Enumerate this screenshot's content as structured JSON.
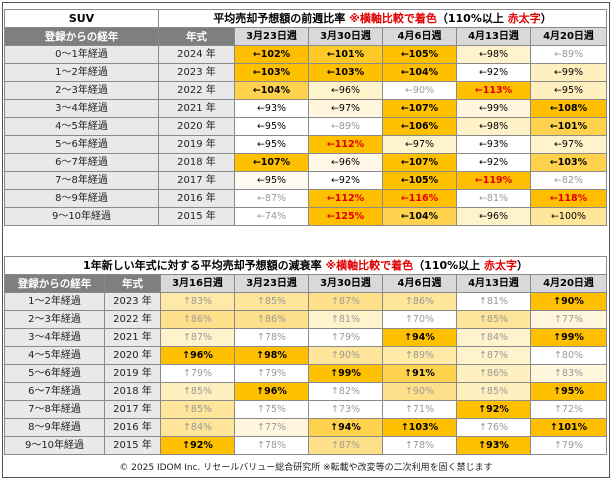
{
  "chart_data": [
    {
      "type": "table",
      "title_left": "SUV",
      "title_main": "平均売却予想額の前週比率",
      "title_note": "※横軸比較で着色",
      "title_paren_open": "（110%以上",
      "title_paren_red": "赤太字",
      "title_paren_close": "）",
      "row_header": "登録からの経年",
      "year_header": "年式",
      "columns": [
        "3月23日週",
        "3月30日週",
        "4月6日週",
        "4月13日週",
        "4月20日週"
      ],
      "rows": [
        {
          "age": "0～1年経過",
          "year": "2024 年",
          "cells": [
            {
              "text": "←102%",
              "bg": "#ffbf00",
              "style": "big"
            },
            {
              "text": "←101%",
              "bg": "#ffca28",
              "style": "big"
            },
            {
              "text": "←105%",
              "bg": "#ffc000",
              "style": "big"
            },
            {
              "text": "←98%",
              "bg": "#fff3cc",
              "style": ""
            },
            {
              "text": "←89%",
              "bg": "#ffffff",
              "style": "grey"
            }
          ]
        },
        {
          "age": "1～2年経過",
          "year": "2023 年",
          "cells": [
            {
              "text": "←103%",
              "bg": "#ffc000",
              "style": "big"
            },
            {
              "text": "←103%",
              "bg": "#ffc000",
              "style": "big"
            },
            {
              "text": "←104%",
              "bg": "#ffbf00",
              "style": "big"
            },
            {
              "text": "←92%",
              "bg": "#ffffff",
              "style": ""
            },
            {
              "text": "←99%",
              "bg": "#fff0c0",
              "style": ""
            }
          ]
        },
        {
          "age": "2～3年経過",
          "year": "2022 年",
          "cells": [
            {
              "text": "←104%",
              "bg": "#ffd24d",
              "style": "big"
            },
            {
              "text": "←96%",
              "bg": "#fff3cc",
              "style": ""
            },
            {
              "text": "←90%",
              "bg": "#ffffff",
              "style": "grey"
            },
            {
              "text": "←113%",
              "bg": "#ffc000",
              "style": "red"
            },
            {
              "text": "←95%",
              "bg": "#fff0c0",
              "style": ""
            }
          ]
        },
        {
          "age": "3～4年経過",
          "year": "2021 年",
          "cells": [
            {
              "text": "←93%",
              "bg": "#ffffff",
              "style": ""
            },
            {
              "text": "←97%",
              "bg": "#fff6dd",
              "style": ""
            },
            {
              "text": "←107%",
              "bg": "#ffc000",
              "style": "big"
            },
            {
              "text": "←99%",
              "bg": "#fff6dd",
              "style": ""
            },
            {
              "text": "←108%",
              "bg": "#ffbf00",
              "style": "big"
            }
          ]
        },
        {
          "age": "4～5年経過",
          "year": "2020 年",
          "cells": [
            {
              "text": "←95%",
              "bg": "#ffffff",
              "style": ""
            },
            {
              "text": "←89%",
              "bg": "#ffffff",
              "style": "grey"
            },
            {
              "text": "←106%",
              "bg": "#ffc000",
              "style": "big"
            },
            {
              "text": "←98%",
              "bg": "#fff2c8",
              "style": ""
            },
            {
              "text": "←101%",
              "bg": "#ffd24d",
              "style": "big"
            }
          ]
        },
        {
          "age": "5～6年経過",
          "year": "2019 年",
          "cells": [
            {
              "text": "←95%",
              "bg": "#ffffff",
              "style": ""
            },
            {
              "text": "←112%",
              "bg": "#ffc000",
              "style": "red"
            },
            {
              "text": "←97%",
              "bg": "#fff3cc",
              "style": ""
            },
            {
              "text": "←93%",
              "bg": "#ffffff",
              "style": ""
            },
            {
              "text": "←97%",
              "bg": "#fff3cc",
              "style": ""
            }
          ]
        },
        {
          "age": "6～7年経過",
          "year": "2018 年",
          "cells": [
            {
              "text": "←107%",
              "bg": "#ffc000",
              "style": "big"
            },
            {
              "text": "←96%",
              "bg": "#fff8e6",
              "style": ""
            },
            {
              "text": "←107%",
              "bg": "#ffc000",
              "style": "big"
            },
            {
              "text": "←92%",
              "bg": "#ffffff",
              "style": ""
            },
            {
              "text": "←103%",
              "bg": "#ffd24d",
              "style": "big"
            }
          ]
        },
        {
          "age": "7～8年経過",
          "year": "2017 年",
          "cells": [
            {
              "text": "←95%",
              "bg": "#fffbf0",
              "style": ""
            },
            {
              "text": "←92%",
              "bg": "#ffffff",
              "style": ""
            },
            {
              "text": "←105%",
              "bg": "#ffc000",
              "style": "big"
            },
            {
              "text": "←119%",
              "bg": "#ffbf00",
              "style": "red"
            },
            {
              "text": "←82%",
              "bg": "#ffffff",
              "style": "grey"
            }
          ]
        },
        {
          "age": "8～9年経過",
          "year": "2016 年",
          "cells": [
            {
              "text": "←87%",
              "bg": "#ffffff",
              "style": "grey"
            },
            {
              "text": "←112%",
              "bg": "#ffc000",
              "style": "red"
            },
            {
              "text": "←116%",
              "bg": "#ffbf00",
              "style": "red"
            },
            {
              "text": "←81%",
              "bg": "#ffffff",
              "style": "grey"
            },
            {
              "text": "←118%",
              "bg": "#ffbf00",
              "style": "red"
            }
          ]
        },
        {
          "age": "9～10年経過",
          "year": "2015 年",
          "cells": [
            {
              "text": "←74%",
              "bg": "#ffffff",
              "style": "grey"
            },
            {
              "text": "←125%",
              "bg": "#ffbf00",
              "style": "red"
            },
            {
              "text": "←104%",
              "bg": "#ffd24d",
              "style": "big"
            },
            {
              "text": "←96%",
              "bg": "#fff3cc",
              "style": ""
            },
            {
              "text": "←100%",
              "bg": "#ffe699",
              "style": ""
            }
          ]
        }
      ]
    },
    {
      "type": "table",
      "title_main": "1年新しい年式に対する平均売却予想額の減衰率",
      "title_note": "※横軸比較で着色",
      "title_paren_open": "（110%以上",
      "title_paren_red": "赤太字",
      "title_paren_close": "）",
      "row_header": "登録からの経年",
      "year_header": "年式",
      "columns": [
        "3月16日週",
        "3月23日週",
        "3月30日週",
        "4月6日週",
        "4月13日週",
        "4月20日週"
      ],
      "rows": [
        {
          "age": "1～2年経過",
          "year": "2023 年",
          "cells": [
            {
              "text": "↑83%",
              "bg": "#ffe9a8",
              "style": "grey"
            },
            {
              "text": "↑85%",
              "bg": "#ffe599",
              "style": "grey"
            },
            {
              "text": "↑87%",
              "bg": "#ffe08a",
              "style": "grey"
            },
            {
              "text": "↑86%",
              "bg": "#ffe599",
              "style": "grey"
            },
            {
              "text": "↑81%",
              "bg": "#ffffff",
              "style": "grey"
            },
            {
              "text": "↑90%",
              "bg": "#ffc000",
              "style": "big"
            }
          ]
        },
        {
          "age": "2～3年経過",
          "year": "2022 年",
          "cells": [
            {
              "text": "↑86%",
              "bg": "#ffe08a",
              "style": "grey"
            },
            {
              "text": "↑86%",
              "bg": "#ffe08a",
              "style": "grey"
            },
            {
              "text": "↑81%",
              "bg": "#fff3cc",
              "style": "grey"
            },
            {
              "text": "↑70%",
              "bg": "#ffffff",
              "style": "grey"
            },
            {
              "text": "↑85%",
              "bg": "#ffe599",
              "style": "grey"
            },
            {
              "text": "↑77%",
              "bg": "#fff6dd",
              "style": "grey"
            }
          ]
        },
        {
          "age": "3～4年経過",
          "year": "2021 年",
          "cells": [
            {
              "text": "↑87%",
              "bg": "#fff3cc",
              "style": "grey"
            },
            {
              "text": "↑78%",
              "bg": "#ffffff",
              "style": "grey"
            },
            {
              "text": "↑79%",
              "bg": "#ffffff",
              "style": "grey"
            },
            {
              "text": "↑94%",
              "bg": "#ffc000",
              "style": "big"
            },
            {
              "text": "↑84%",
              "bg": "#fff3cc",
              "style": "grey"
            },
            {
              "text": "↑99%",
              "bg": "#ffbf00",
              "style": "big"
            }
          ]
        },
        {
          "age": "4～5年経過",
          "year": "2020 年",
          "cells": [
            {
              "text": "↑96%",
              "bg": "#ffc000",
              "style": "big"
            },
            {
              "text": "↑98%",
              "bg": "#ffbf00",
              "style": "big"
            },
            {
              "text": "↑90%",
              "bg": "#ffe599",
              "style": "grey"
            },
            {
              "text": "↑89%",
              "bg": "#ffeaa8",
              "style": "grey"
            },
            {
              "text": "↑87%",
              "bg": "#fff3cc",
              "style": "grey"
            },
            {
              "text": "↑80%",
              "bg": "#ffffff",
              "style": "grey"
            }
          ]
        },
        {
          "age": "5～6年経過",
          "year": "2019 年",
          "cells": [
            {
              "text": "↑79%",
              "bg": "#ffffff",
              "style": "grey"
            },
            {
              "text": "↑79%",
              "bg": "#ffffff",
              "style": "grey"
            },
            {
              "text": "↑99%",
              "bg": "#ffc000",
              "style": "big"
            },
            {
              "text": "↑91%",
              "bg": "#ffd24d",
              "style": "big"
            },
            {
              "text": "↑86%",
              "bg": "#fff0c0",
              "style": "grey"
            },
            {
              "text": "↑83%",
              "bg": "#fff6dd",
              "style": "grey"
            }
          ]
        },
        {
          "age": "6～7年経過",
          "year": "2018 年",
          "cells": [
            {
              "text": "↑85%",
              "bg": "#fff0c0",
              "style": "grey"
            },
            {
              "text": "↑96%",
              "bg": "#ffc000",
              "style": "big"
            },
            {
              "text": "↑82%",
              "bg": "#ffffff",
              "style": "grey"
            },
            {
              "text": "↑90%",
              "bg": "#ffe08a",
              "style": "grey"
            },
            {
              "text": "↑85%",
              "bg": "#fff0c0",
              "style": "grey"
            },
            {
              "text": "↑95%",
              "bg": "#ffc000",
              "style": "big"
            }
          ]
        },
        {
          "age": "7～8年経過",
          "year": "2017 年",
          "cells": [
            {
              "text": "↑85%",
              "bg": "#ffe599",
              "style": "grey"
            },
            {
              "text": "↑75%",
              "bg": "#ffffff",
              "style": "grey"
            },
            {
              "text": "↑73%",
              "bg": "#ffffff",
              "style": "grey"
            },
            {
              "text": "↑71%",
              "bg": "#ffffff",
              "style": "grey"
            },
            {
              "text": "↑92%",
              "bg": "#ffc000",
              "style": "big"
            },
            {
              "text": "↑72%",
              "bg": "#ffffff",
              "style": "grey"
            }
          ]
        },
        {
          "age": "8～9年経過",
          "year": "2016 年",
          "cells": [
            {
              "text": "↑84%",
              "bg": "#ffe599",
              "style": "grey"
            },
            {
              "text": "↑77%",
              "bg": "#fff6dd",
              "style": "grey"
            },
            {
              "text": "↑94%",
              "bg": "#ffd24d",
              "style": "big"
            },
            {
              "text": "↑103%",
              "bg": "#ffc000",
              "style": "big"
            },
            {
              "text": "↑76%",
              "bg": "#ffffff",
              "style": "grey"
            },
            {
              "text": "↑101%",
              "bg": "#ffbf00",
              "style": "big"
            }
          ]
        },
        {
          "age": "9～10年経過",
          "year": "2015 年",
          "cells": [
            {
              "text": "↑92%",
              "bg": "#ffc000",
              "style": "big"
            },
            {
              "text": "↑78%",
              "bg": "#ffffff",
              "style": "grey"
            },
            {
              "text": "↑87%",
              "bg": "#ffe08a",
              "style": "grey"
            },
            {
              "text": "↑78%",
              "bg": "#ffffff",
              "style": "grey"
            },
            {
              "text": "↑93%",
              "bg": "#ffc000",
              "style": "big"
            },
            {
              "text": "↑79%",
              "bg": "#ffffff",
              "style": "grey"
            }
          ]
        }
      ]
    }
  ],
  "footer": "© 2025 IDOM Inc. リセールバリュー総合研究所 ※転載や改変等の二次利用を固く禁じます",
  "colors": {
    "accent_red": "#e00000",
    "header_dark": "#7f7f7f",
    "header_light": "#d9d9d9",
    "amber": "#ffc000"
  }
}
